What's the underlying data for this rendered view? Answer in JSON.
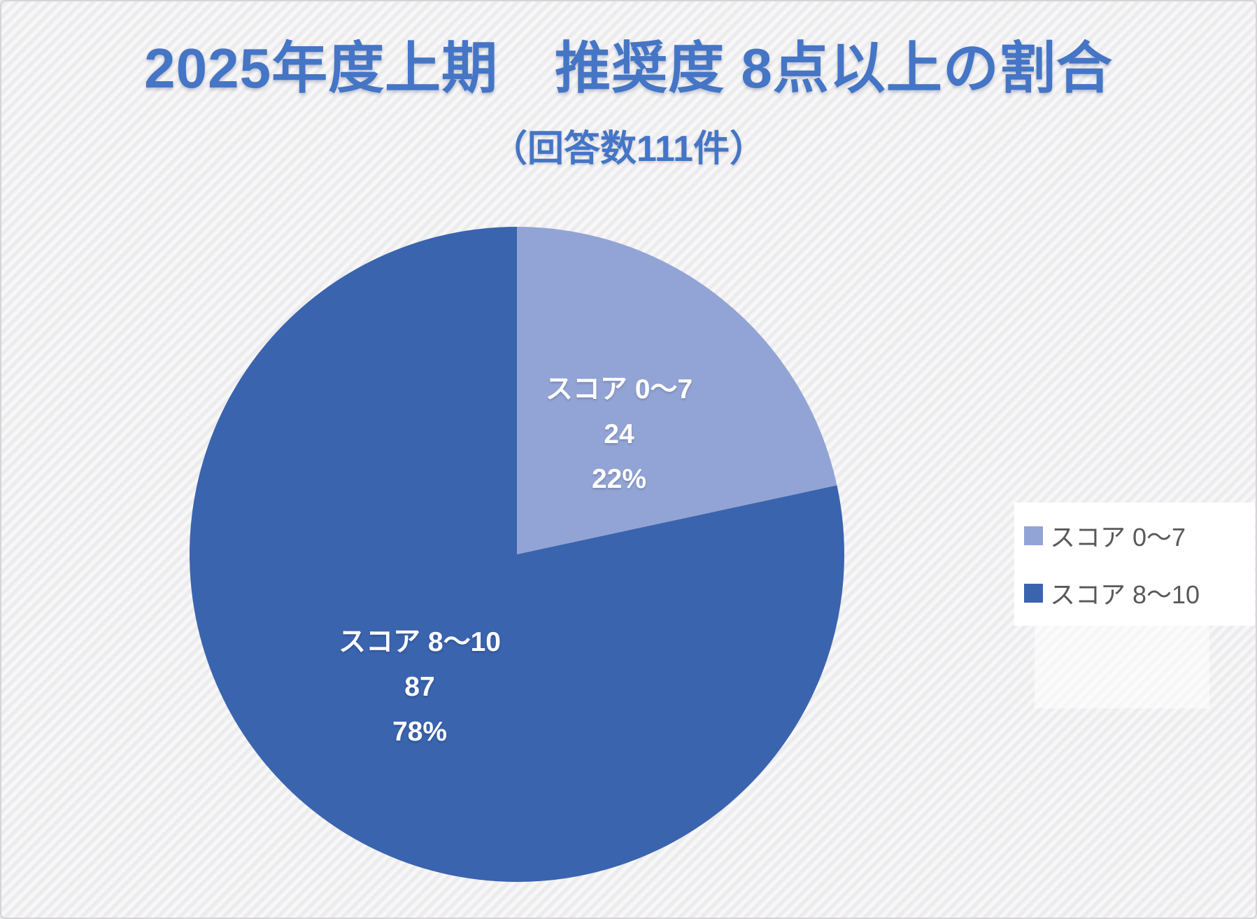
{
  "chart_data": {
    "type": "pie",
    "title": "2025年度上期　推奨度 8点以上の割合",
    "subtitle": "（回答数111件）",
    "total_responses": 111,
    "start_angle": "12-oclock",
    "direction": "clockwise",
    "slices": [
      {
        "label": "スコア 0〜7",
        "value": 24,
        "percent": "22%",
        "color": "#92A4D5"
      },
      {
        "label": "スコア 8〜10",
        "value": 87,
        "percent": "78%",
        "color": "#3A64AE"
      }
    ],
    "legend": {
      "position": "right",
      "items": [
        {
          "label": "スコア 0〜7"
        },
        {
          "label": "スコア 8〜10"
        }
      ]
    },
    "data_label_style": "category-name, value, percentage (white bold, inside slices)",
    "background": "light diagonal-striped slide"
  },
  "colors": {
    "title_text": "#4575C5",
    "legend_text": "#595959",
    "slice_label_text": "#ffffff",
    "legend_background": "#ffffff"
  }
}
